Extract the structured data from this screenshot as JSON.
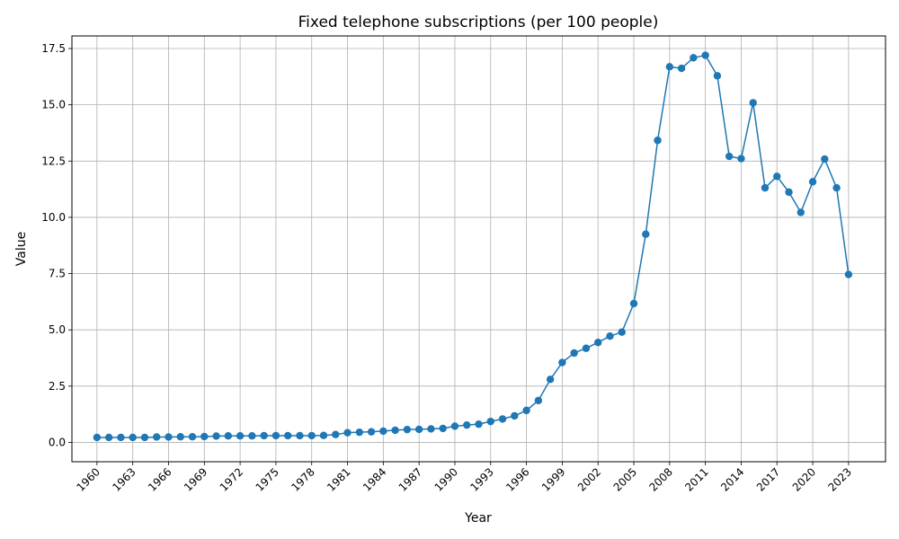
{
  "chart_data": {
    "type": "line",
    "title": "Fixed telephone subscriptions (per 100 people)",
    "xlabel": "Year",
    "ylabel": "Value",
    "xlim": [
      1957.9,
      2026.1
    ],
    "ylim": [
      -0.86,
      18.06
    ],
    "grid": true,
    "legend": "none",
    "x_ticks": [
      1960,
      1963,
      1966,
      1969,
      1972,
      1975,
      1978,
      1981,
      1984,
      1987,
      1990,
      1993,
      1996,
      1999,
      2002,
      2005,
      2008,
      2011,
      2014,
      2017,
      2020,
      2023
    ],
    "y_ticks": [
      0.0,
      2.5,
      5.0,
      7.5,
      10.0,
      12.5,
      15.0,
      17.5
    ],
    "y_tick_labels": [
      "0.0",
      "2.5",
      "5.0",
      "7.5",
      "10.0",
      "12.5",
      "15.0",
      "17.5"
    ],
    "series": [
      {
        "color": "#1f77b4",
        "marker": "circle",
        "x": [
          1960,
          1961,
          1962,
          1963,
          1964,
          1965,
          1966,
          1967,
          1968,
          1969,
          1970,
          1971,
          1972,
          1973,
          1974,
          1975,
          1976,
          1977,
          1978,
          1979,
          1980,
          1981,
          1982,
          1983,
          1984,
          1985,
          1986,
          1987,
          1988,
          1989,
          1990,
          1991,
          1992,
          1993,
          1994,
          1995,
          1996,
          1997,
          1998,
          1999,
          2000,
          2001,
          2002,
          2003,
          2004,
          2005,
          2006,
          2007,
          2008,
          2009,
          2010,
          2011,
          2012,
          2013,
          2014,
          2015,
          2016,
          2017,
          2018,
          2019,
          2020,
          2021,
          2022,
          2023
        ],
        "values": [
          0.22,
          0.22,
          0.22,
          0.22,
          0.22,
          0.24,
          0.24,
          0.25,
          0.25,
          0.26,
          0.28,
          0.29,
          0.29,
          0.29,
          0.3,
          0.3,
          0.3,
          0.3,
          0.3,
          0.31,
          0.35,
          0.43,
          0.45,
          0.47,
          0.5,
          0.54,
          0.57,
          0.58,
          0.6,
          0.62,
          0.72,
          0.77,
          0.81,
          0.93,
          1.04,
          1.18,
          1.42,
          1.86,
          2.8,
          3.55,
          3.97,
          4.18,
          4.44,
          4.72,
          4.9,
          6.17,
          9.25,
          13.42,
          16.69,
          16.62,
          17.09,
          17.2,
          16.29,
          12.71,
          12.61,
          15.09,
          11.31,
          11.82,
          11.12,
          10.22,
          11.58,
          12.59,
          11.31,
          7.46
        ]
      }
    ]
  }
}
